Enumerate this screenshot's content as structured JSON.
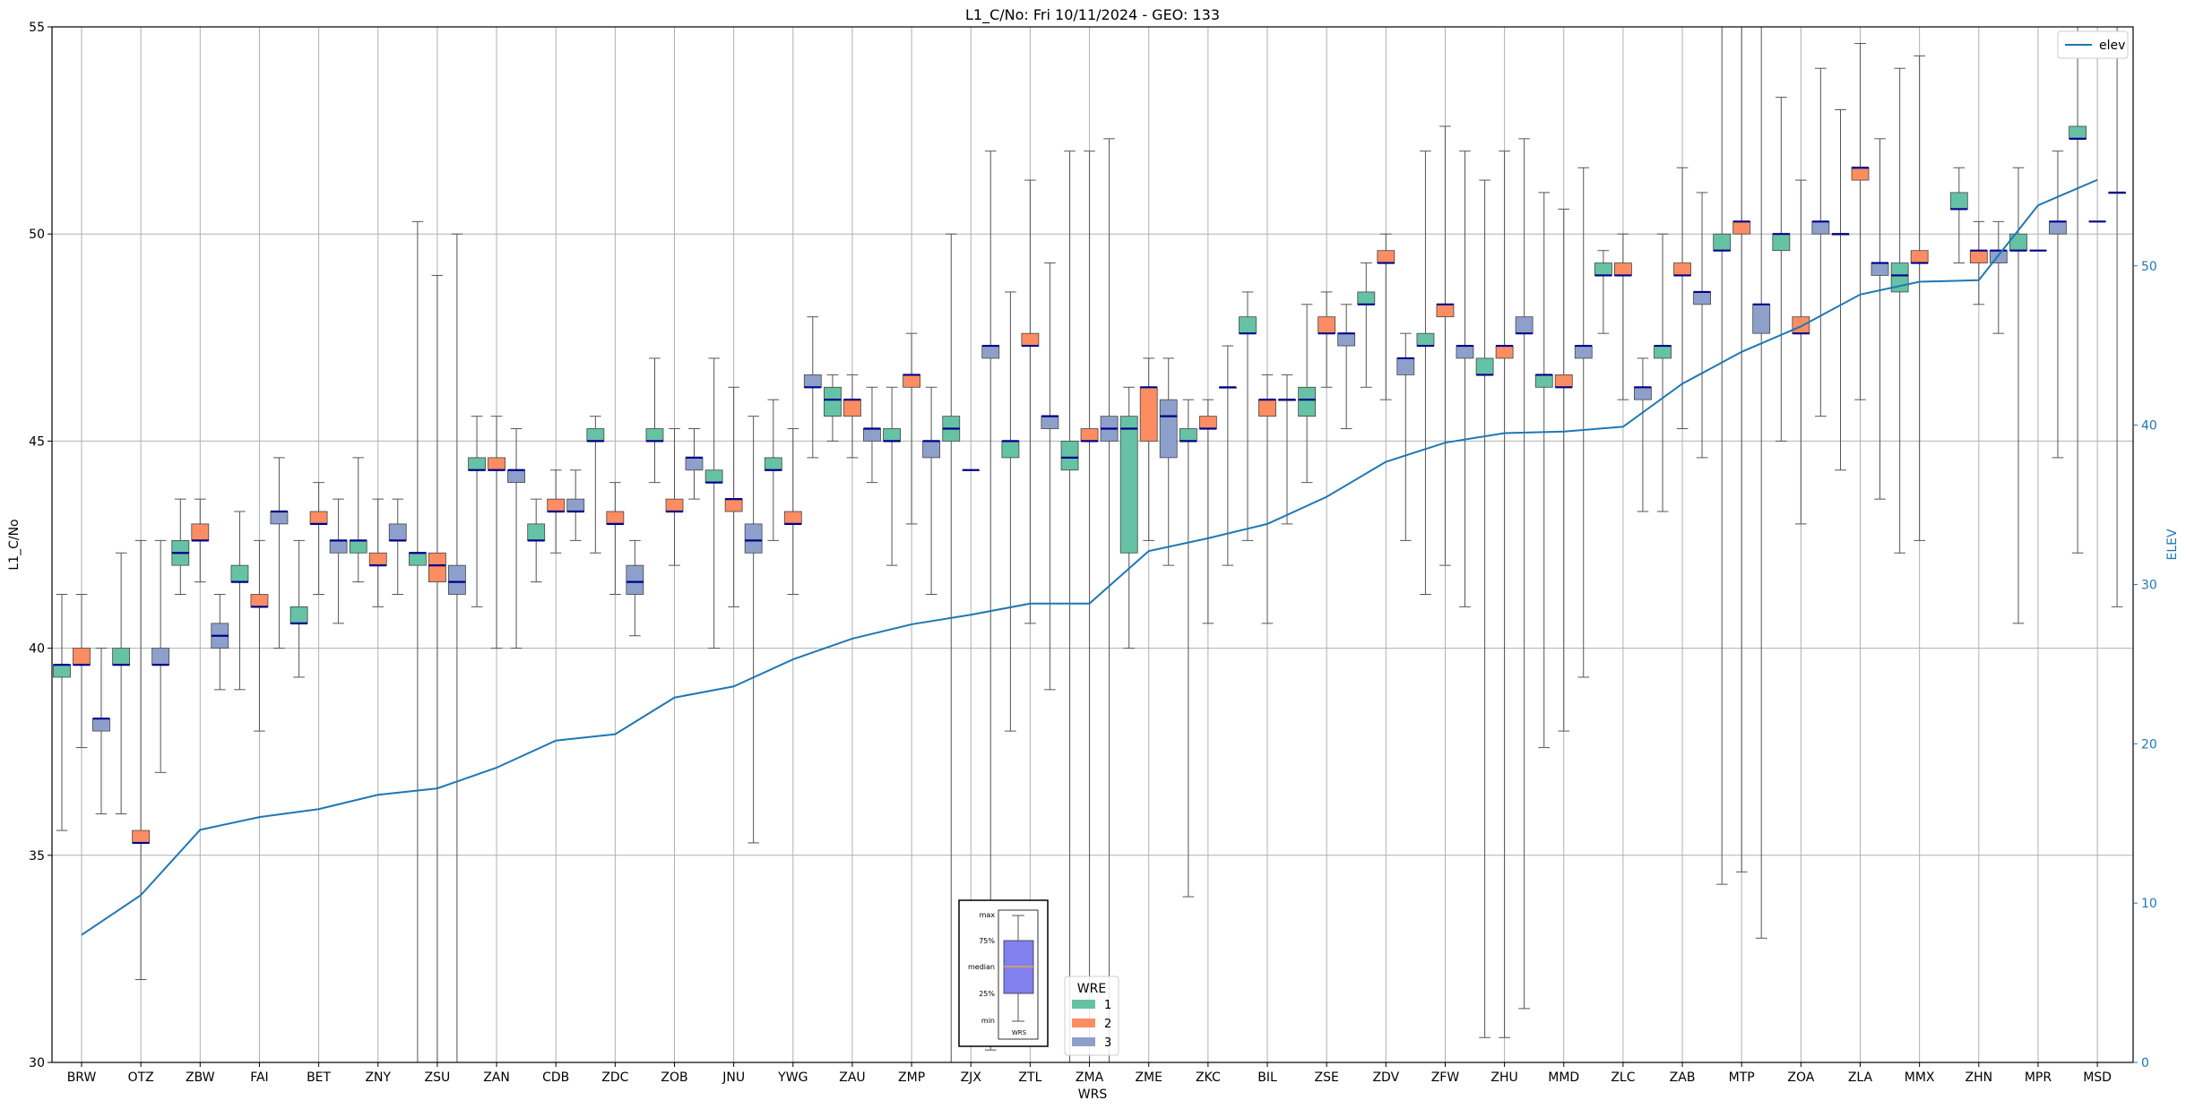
{
  "chart_data": {
    "type": "box",
    "title": "L1_C/No: Fri 10/11/2024 - GEO: 133",
    "xlabel": "WRS",
    "ylabel": "L1_C/No",
    "y2label": "ELEV",
    "ylim": [
      30,
      55
    ],
    "y2lim": [
      0,
      65
    ],
    "yticks": [
      30,
      35,
      40,
      45,
      50,
      55
    ],
    "y2ticks": [
      0,
      10,
      20,
      30,
      40,
      50
    ],
    "grid": true,
    "categories": [
      "BRW",
      "OTZ",
      "ZBW",
      "FAI",
      "BET",
      "ZNY",
      "ZSU",
      "ZAN",
      "CDB",
      "ZDC",
      "ZOB",
      "JNU",
      "YWG",
      "ZAU",
      "ZMP",
      "ZJX",
      "ZTL",
      "ZMA",
      "ZME",
      "ZKC",
      "BIL",
      "ZSE",
      "ZDV",
      "ZFW",
      "ZHU",
      "MMD",
      "ZLC",
      "ZAB",
      "MTP",
      "ZOA",
      "ZLA",
      "MMX",
      "ZHN",
      "MPR",
      "MSD"
    ],
    "series": [
      {
        "name": "1",
        "color": "#66c2a5",
        "boxes": [
          [
            35.6,
            39.3,
            39.6,
            39.6,
            41.3
          ],
          [
            36.0,
            39.6,
            39.6,
            40.0,
            42.3
          ],
          [
            41.3,
            42.0,
            42.3,
            42.6,
            43.6
          ],
          [
            39.0,
            41.6,
            41.6,
            42.0,
            43.3
          ],
          [
            39.3,
            40.6,
            40.6,
            41.0,
            42.6
          ],
          [
            41.6,
            42.3,
            42.6,
            42.6,
            44.6
          ],
          [
            30.0,
            42.0,
            42.3,
            42.3,
            50.3
          ],
          [
            41.0,
            44.3,
            44.3,
            44.6,
            45.6
          ],
          [
            41.6,
            42.6,
            42.6,
            43.0,
            43.6
          ],
          [
            42.3,
            45.0,
            45.0,
            45.3,
            45.6
          ],
          [
            44.0,
            45.0,
            45.0,
            45.3,
            47.0
          ],
          [
            40.0,
            44.0,
            44.0,
            44.3,
            47.0
          ],
          [
            42.6,
            44.3,
            44.3,
            44.6,
            46.0
          ],
          [
            45.0,
            45.6,
            46.0,
            46.3,
            46.6
          ],
          [
            42.0,
            45.0,
            45.0,
            45.3,
            46.3
          ],
          [
            30.0,
            45.0,
            45.3,
            45.6,
            50.0
          ],
          [
            38.0,
            44.6,
            45.0,
            45.0,
            48.6
          ],
          [
            30.0,
            44.3,
            44.6,
            45.0,
            52.0
          ],
          [
            40.0,
            42.3,
            45.3,
            45.6,
            46.3
          ],
          [
            34.0,
            45.0,
            45.0,
            45.3,
            46.0
          ],
          [
            42.6,
            47.6,
            47.6,
            48.0,
            48.6
          ],
          [
            44.0,
            45.6,
            46.0,
            46.3,
            48.3
          ],
          [
            46.3,
            48.3,
            48.3,
            48.6,
            49.3
          ],
          [
            41.3,
            47.3,
            47.3,
            47.6,
            52.0
          ],
          [
            30.6,
            46.6,
            46.6,
            47.0,
            51.3
          ],
          [
            37.6,
            46.3,
            46.6,
            46.6,
            51.0
          ],
          [
            47.6,
            49.0,
            49.0,
            49.3,
            49.6
          ],
          [
            43.3,
            47.0,
            47.3,
            47.3,
            50.0
          ],
          [
            34.3,
            49.6,
            49.6,
            50.0,
            55.0
          ],
          [
            45.0,
            49.6,
            50.0,
            50.0,
            53.3
          ],
          [
            44.3,
            50.0,
            50.0,
            50.0,
            53.0
          ],
          [
            42.3,
            48.6,
            49.0,
            49.3,
            54.0
          ],
          [
            49.3,
            50.6,
            50.6,
            51.0,
            51.6
          ],
          [
            40.6,
            49.6,
            49.6,
            50.0,
            51.6
          ],
          [
            42.3,
            52.3,
            52.3,
            52.6,
            55.0
          ]
        ]
      },
      {
        "name": "2",
        "color": "#fc8d62",
        "boxes": [
          [
            37.6,
            39.6,
            39.6,
            40.0,
            41.3
          ],
          [
            32.0,
            35.3,
            35.3,
            35.6,
            42.6
          ],
          [
            41.6,
            42.6,
            42.6,
            43.0,
            43.6
          ],
          [
            38.0,
            41.0,
            41.0,
            41.3,
            42.6
          ],
          [
            41.3,
            43.0,
            43.0,
            43.3,
            44.0
          ],
          [
            41.0,
            42.0,
            42.0,
            42.3,
            43.6
          ],
          [
            30.0,
            41.6,
            42.0,
            42.3,
            49.0
          ],
          [
            40.0,
            44.3,
            44.3,
            44.6,
            45.6
          ],
          [
            42.3,
            43.3,
            43.3,
            43.6,
            44.3
          ],
          [
            41.3,
            43.0,
            43.0,
            43.3,
            44.0
          ],
          [
            42.0,
            43.3,
            43.3,
            43.6,
            45.3
          ],
          [
            41.0,
            43.3,
            43.6,
            43.6,
            46.3
          ],
          [
            41.3,
            43.0,
            43.0,
            43.3,
            45.3
          ],
          [
            44.6,
            45.6,
            46.0,
            46.0,
            46.6
          ],
          [
            43.0,
            46.3,
            46.6,
            46.6,
            47.6
          ],
          [
            null,
            null,
            44.3,
            null,
            null
          ],
          [
            40.6,
            47.3,
            47.3,
            47.6,
            51.3
          ],
          [
            30.0,
            45.0,
            45.0,
            45.3,
            52.0
          ],
          [
            42.6,
            45.0,
            46.3,
            46.3,
            47.0
          ],
          [
            40.6,
            45.3,
            45.3,
            45.6,
            46.0
          ],
          [
            40.6,
            45.6,
            46.0,
            46.0,
            46.6
          ],
          [
            46.3,
            47.6,
            47.6,
            48.0,
            48.6
          ],
          [
            46.0,
            49.3,
            49.3,
            49.6,
            50.0
          ],
          [
            42.0,
            48.0,
            48.3,
            48.3,
            52.6
          ],
          [
            30.6,
            47.0,
            47.3,
            47.3,
            52.0
          ],
          [
            38.0,
            46.3,
            46.3,
            46.6,
            50.6
          ],
          [
            46.0,
            49.0,
            49.0,
            49.3,
            50.0
          ],
          [
            45.3,
            49.0,
            49.0,
            49.3,
            51.6
          ],
          [
            34.6,
            50.0,
            50.3,
            50.3,
            55.0
          ],
          [
            43.0,
            47.6,
            47.6,
            48.0,
            51.3
          ],
          [
            46.0,
            51.3,
            51.6,
            51.6,
            54.6
          ],
          [
            42.6,
            49.3,
            49.3,
            49.6,
            54.3
          ],
          [
            48.3,
            49.3,
            49.6,
            49.6,
            50.3
          ],
          [
            null,
            null,
            49.6,
            null,
            null
          ],
          [
            null,
            null,
            50.3,
            null,
            null
          ]
        ]
      },
      {
        "name": "3",
        "color": "#8da0cb",
        "boxes": [
          [
            36.0,
            38.0,
            38.3,
            38.3,
            40.0
          ],
          [
            37.0,
            39.6,
            39.6,
            40.0,
            42.6
          ],
          [
            39.0,
            40.0,
            40.3,
            40.6,
            41.3
          ],
          [
            40.0,
            43.0,
            43.3,
            43.3,
            44.6
          ],
          [
            40.6,
            42.3,
            42.6,
            42.6,
            43.6
          ],
          [
            41.3,
            42.6,
            42.6,
            43.0,
            43.6
          ],
          [
            30.0,
            41.3,
            41.6,
            42.0,
            50.0
          ],
          [
            40.0,
            44.0,
            44.3,
            44.3,
            45.3
          ],
          [
            42.6,
            43.3,
            43.3,
            43.6,
            44.3
          ],
          [
            40.3,
            41.3,
            41.6,
            42.0,
            42.6
          ],
          [
            43.6,
            44.3,
            44.6,
            44.6,
            45.3
          ],
          [
            35.3,
            42.3,
            42.6,
            43.0,
            45.6
          ],
          [
            44.6,
            46.3,
            46.3,
            46.6,
            48.0
          ],
          [
            44.0,
            45.0,
            45.3,
            45.3,
            46.3
          ],
          [
            41.3,
            44.6,
            45.0,
            45.0,
            46.3
          ],
          [
            30.3,
            47.0,
            47.3,
            47.3,
            52.0
          ],
          [
            39.0,
            45.3,
            45.6,
            45.6,
            49.3
          ],
          [
            30.0,
            45.0,
            45.3,
            45.6,
            52.3
          ],
          [
            42.0,
            44.6,
            45.6,
            46.0,
            47.0
          ],
          [
            42.0,
            46.3,
            46.3,
            46.3,
            47.3
          ],
          [
            43.0,
            46.0,
            46.0,
            46.0,
            46.6
          ],
          [
            45.3,
            47.3,
            47.6,
            47.6,
            48.3
          ],
          [
            42.6,
            46.6,
            47.0,
            47.0,
            47.6
          ],
          [
            41.0,
            47.0,
            47.3,
            47.3,
            52.0
          ],
          [
            31.3,
            47.6,
            47.6,
            48.0,
            52.3
          ],
          [
            39.3,
            47.0,
            47.3,
            47.3,
            51.6
          ],
          [
            43.3,
            46.0,
            46.3,
            46.3,
            47.0
          ],
          [
            44.6,
            48.3,
            48.6,
            48.6,
            51.0
          ],
          [
            33.0,
            47.6,
            48.3,
            48.3,
            55.0
          ],
          [
            45.6,
            50.0,
            50.3,
            50.3,
            54.0
          ],
          [
            43.6,
            49.0,
            49.3,
            49.3,
            52.3
          ],
          [
            null,
            null,
            null,
            null,
            null
          ],
          [
            47.6,
            49.3,
            49.6,
            49.6,
            50.3
          ],
          [
            44.6,
            50.0,
            50.3,
            50.3,
            52.0
          ],
          [
            41.0,
            51.0,
            51.0,
            51.0,
            55.0
          ]
        ]
      }
    ],
    "elev": {
      "name": "elev",
      "color": "#1f77b4",
      "values": [
        8.0,
        10.5,
        14.6,
        15.4,
        15.9,
        16.8,
        17.2,
        18.5,
        20.2,
        20.6,
        22.9,
        23.6,
        25.3,
        26.6,
        27.5,
        28.1,
        28.8,
        28.8,
        32.1,
        32.9,
        33.8,
        35.5,
        37.7,
        38.9,
        39.5,
        39.6,
        39.9,
        42.6,
        44.6,
        46.2,
        48.2,
        49.0,
        49.1,
        53.8,
        55.4
      ]
    },
    "legend": {
      "title": "WRE",
      "location": "bottom-center",
      "labels": [
        "1",
        "2",
        "3"
      ]
    },
    "legend_elev": {
      "location": "top-right",
      "labels": [
        "elev"
      ]
    },
    "inset_key": {
      "labels": [
        "max",
        "75%",
        "median",
        "25%",
        "min",
        "WRS"
      ]
    }
  }
}
